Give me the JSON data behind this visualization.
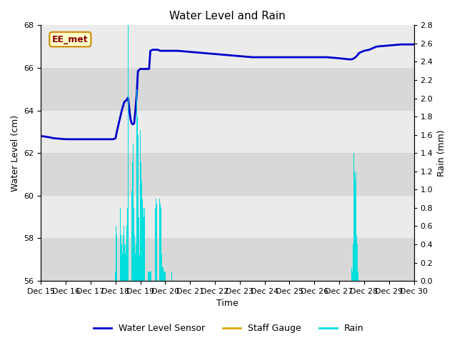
{
  "title": "Water Level and Rain",
  "xlabel": "Time",
  "ylabel_left": "Water Level (cm)",
  "ylabel_right": "Rain (mm)",
  "annotation": "EE_met",
  "xlim": [
    0,
    15
  ],
  "ylim_left": [
    56,
    68
  ],
  "ylim_right": [
    0.0,
    2.8
  ],
  "yticks_left": [
    56,
    58,
    60,
    62,
    64,
    66,
    68
  ],
  "yticks_right": [
    0.0,
    0.2,
    0.4,
    0.6,
    0.8,
    1.0,
    1.2,
    1.4,
    1.6,
    1.8,
    2.0,
    2.2,
    2.4,
    2.6,
    2.8
  ],
  "xtick_labels": [
    "Dec 15",
    "Dec 16",
    "Dec 17",
    "Dec 18",
    "Dec 19",
    "Dec 20",
    "Dec 21",
    "Dec 22",
    "Dec 23",
    "Dec 24",
    "Dec 25",
    "Dec 26",
    "Dec 27",
    "Dec 28",
    "Dec 29",
    "Dec 30"
  ],
  "water_level_color": "#0000cc",
  "rain_color": "#00dddd",
  "staff_gauge_color": "#ddaa00",
  "band_color_light": "#ebebeb",
  "band_color_dark": "#d8d8d8",
  "water_level_x": [
    0,
    0.3,
    0.5,
    1.0,
    1.5,
    2.0,
    2.5,
    2.9,
    3.0,
    3.05,
    3.15,
    3.25,
    3.35,
    3.45,
    3.5,
    3.6,
    3.65,
    3.7,
    3.75,
    3.85,
    3.9,
    4.0,
    4.05,
    4.15,
    4.2,
    4.25,
    4.3,
    4.35,
    4.4,
    4.5,
    4.6,
    4.65,
    4.7,
    4.8,
    4.9,
    5.0,
    5.1,
    5.5,
    6.0,
    6.5,
    7.0,
    7.5,
    8.0,
    8.5,
    9.0,
    9.5,
    10.0,
    10.5,
    11.0,
    11.5,
    12.0,
    12.4,
    12.5,
    12.6,
    12.7,
    12.8,
    13.0,
    13.2,
    13.5,
    14.0,
    14.5,
    15.0
  ],
  "water_level_y": [
    62.8,
    62.75,
    62.7,
    62.65,
    62.65,
    62.65,
    62.65,
    62.65,
    62.7,
    63.0,
    63.5,
    64.0,
    64.4,
    64.5,
    64.6,
    63.6,
    63.4,
    63.35,
    63.4,
    64.7,
    65.85,
    65.95,
    65.95,
    65.95,
    65.95,
    65.95,
    65.95,
    65.95,
    66.8,
    66.85,
    66.85,
    66.85,
    66.85,
    66.8,
    66.8,
    66.8,
    66.8,
    66.8,
    66.75,
    66.7,
    66.65,
    66.6,
    66.55,
    66.5,
    66.5,
    66.5,
    66.5,
    66.5,
    66.5,
    66.5,
    66.45,
    66.4,
    66.4,
    66.45,
    66.55,
    66.7,
    66.8,
    66.85,
    67.0,
    67.05,
    67.1,
    67.1
  ],
  "rain_x": [
    3.0,
    3.03,
    3.06,
    3.09,
    3.12,
    3.15,
    3.18,
    3.21,
    3.24,
    3.27,
    3.3,
    3.33,
    3.36,
    3.39,
    3.42,
    3.45,
    3.48,
    3.51,
    3.55,
    3.58,
    3.61,
    3.64,
    3.67,
    3.7,
    3.73,
    3.76,
    3.79,
    3.82,
    3.85,
    3.88,
    3.91,
    3.94,
    3.97,
    4.0,
    4.03,
    4.06,
    4.09,
    4.12,
    4.15,
    4.18,
    4.21,
    4.24,
    4.27,
    4.3,
    4.33,
    4.36,
    4.39,
    4.42,
    4.6,
    4.63,
    4.66,
    4.7,
    4.73,
    4.76,
    4.79,
    4.82,
    4.85,
    4.88,
    4.91,
    4.94,
    4.97,
    5.0,
    5.27,
    5.33,
    12.5,
    12.53,
    12.56,
    12.59,
    12.62,
    12.65,
    12.68,
    12.71,
    12.74,
    12.77,
    12.8
  ],
  "rain_y": [
    0.1,
    0.6,
    0.5,
    0.8,
    1.1,
    1.2,
    0.8,
    0.5,
    0.4,
    0.3,
    0.5,
    0.6,
    0.4,
    0.3,
    0.4,
    0.6,
    0.8,
    2.8,
    0.5,
    0.6,
    0.8,
    1.0,
    1.3,
    1.5,
    0.8,
    0.5,
    0.3,
    0.4,
    2.1,
    1.8,
    1.6,
    0.7,
    0.3,
    1.65,
    1.3,
    1.1,
    0.9,
    0.8,
    0.7,
    0.8,
    0.9,
    0.2,
    0.15,
    0.1,
    0.1,
    0.1,
    0.1,
    0.1,
    0.8,
    0.9,
    0.85,
    1.3,
    1.2,
    0.9,
    0.85,
    0.8,
    0.3,
    0.15,
    0.15,
    0.1,
    0.1,
    0.1,
    0.1,
    0.1,
    0.15,
    0.1,
    0.4,
    1.4,
    1.2,
    1.1,
    1.2,
    0.5,
    0.4,
    0.1,
    0.1
  ]
}
